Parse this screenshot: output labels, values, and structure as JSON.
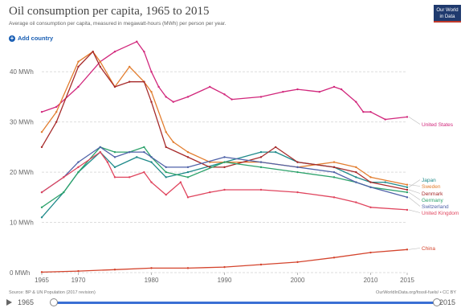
{
  "header": {
    "title": "Oil consumption per capita, 1965 to 2015",
    "subtitle": "Average oil consumption per capita, measured in megawatt-hours (MWh) per person per year.",
    "logo_line1": "Our World",
    "logo_line2": "in Data",
    "add_country": "Add country"
  },
  "footer": {
    "source": "Source: BP & UN Population (2017 revision)",
    "url": "OurWorldInData.org/fossil-fuels/ • CC BY"
  },
  "timeline": {
    "start": "1965",
    "end": "2015"
  },
  "chart_data": {
    "type": "line",
    "title": "Oil consumption per capita, 1965 to 2015",
    "ylabel": "",
    "xlim": [
      1965,
      2015
    ],
    "ylim": [
      0,
      45
    ],
    "y_ticks": [
      0,
      10,
      20,
      30,
      40
    ],
    "y_tick_labels": [
      "0 MWh",
      "10 MWh",
      "20 MWh",
      "30 MWh",
      "40 MWh"
    ],
    "x_ticks": [
      1965,
      1970,
      1980,
      1990,
      2000,
      2010,
      2015
    ],
    "x_tick_labels": [
      "1965",
      "1970",
      "1980",
      "1990",
      "2000",
      "2010",
      "2015"
    ],
    "grid": "horizontal",
    "legend": "right end labels",
    "series": [
      {
        "name": "United States",
        "color": "#d1267b",
        "x": [
          1965,
          1967,
          1970,
          1973,
          1975,
          1978,
          1979,
          1980,
          1981,
          1982,
          1983,
          1985,
          1988,
          1990,
          1991,
          1995,
          1998,
          2000,
          2003,
          2005,
          2006,
          2008,
          2009,
          2010,
          2012,
          2015
        ],
        "y": [
          32,
          33,
          37,
          42,
          44,
          46,
          44,
          40,
          37,
          35,
          34,
          35,
          37,
          35.5,
          34.5,
          35,
          36,
          36.5,
          36,
          37,
          36.5,
          34,
          32,
          32,
          30.5,
          31
        ]
      },
      {
        "name": "Japan",
        "color": "#1f8a8a",
        "x": [
          1965,
          1968,
          1970,
          1973,
          1975,
          1978,
          1980,
          1982,
          1985,
          1990,
          1995,
          1997,
          2000,
          2005,
          2008,
          2010,
          2012,
          2015
        ],
        "y": [
          11,
          16,
          20,
          24,
          21,
          23,
          22,
          19,
          20,
          22,
          24,
          24,
          22,
          21,
          19,
          18,
          18,
          17
        ]
      },
      {
        "name": "Sweden",
        "color": "#e27d2e",
        "x": [
          1965,
          1967,
          1970,
          1972,
          1973,
          1975,
          1977,
          1979,
          1980,
          1982,
          1983,
          1985,
          1988,
          1990,
          1995,
          2000,
          2005,
          2008,
          2010,
          2015
        ],
        "y": [
          28,
          32,
          42,
          44,
          42,
          37,
          41,
          38,
          36,
          28,
          26,
          24,
          22,
          22,
          22,
          21,
          22,
          21,
          19,
          17.5
        ]
      },
      {
        "name": "Denmark",
        "color": "#a72b2b",
        "x": [
          1965,
          1967,
          1970,
          1972,
          1973,
          1975,
          1977,
          1979,
          1980,
          1982,
          1985,
          1988,
          1990,
          1995,
          1997,
          2000,
          2005,
          2008,
          2010,
          2015
        ],
        "y": [
          25,
          30,
          41,
          44,
          41,
          37,
          38,
          38,
          34,
          25,
          23,
          21,
          21,
          23,
          25,
          22,
          21,
          20,
          18,
          16.5
        ]
      },
      {
        "name": "Germany",
        "color": "#2ca26b",
        "x": [
          1965,
          1968,
          1970,
          1973,
          1975,
          1977,
          1979,
          1980,
          1982,
          1985,
          1990,
          1995,
          2000,
          2005,
          2008,
          2010,
          2015
        ],
        "y": [
          13,
          16,
          20,
          25,
          24,
          24,
          25,
          23,
          20,
          19,
          22,
          21,
          20,
          19,
          18,
          17,
          16
        ]
      },
      {
        "name": "Switzerland",
        "color": "#4f62a8",
        "x": [
          1965,
          1968,
          1970,
          1973,
          1975,
          1977,
          1979,
          1980,
          1982,
          1985,
          1990,
          1995,
          2000,
          2005,
          2008,
          2010,
          2015
        ],
        "y": [
          16,
          19,
          22,
          25,
          23,
          24,
          24,
          23,
          21,
          21,
          23,
          22,
          21,
          20,
          18,
          17,
          15
        ]
      },
      {
        "name": "United Kingdom",
        "color": "#e0455e",
        "x": [
          1965,
          1968,
          1970,
          1973,
          1974,
          1975,
          1977,
          1979,
          1980,
          1982,
          1984,
          1985,
          1988,
          1990,
          1995,
          2000,
          2005,
          2008,
          2010,
          2015
        ],
        "y": [
          16,
          19,
          21,
          24,
          22,
          19,
          19,
          20,
          18,
          15.5,
          18,
          15,
          16,
          16.5,
          16.5,
          16,
          15,
          14,
          13,
          12.5
        ]
      },
      {
        "name": "China",
        "color": "#d4442d",
        "x": [
          1965,
          1970,
          1975,
          1980,
          1985,
          1990,
          1995,
          2000,
          2005,
          2010,
          2015
        ],
        "y": [
          0.1,
          0.3,
          0.6,
          0.9,
          0.9,
          1.1,
          1.6,
          2.1,
          3,
          4,
          4.6
        ]
      }
    ]
  }
}
